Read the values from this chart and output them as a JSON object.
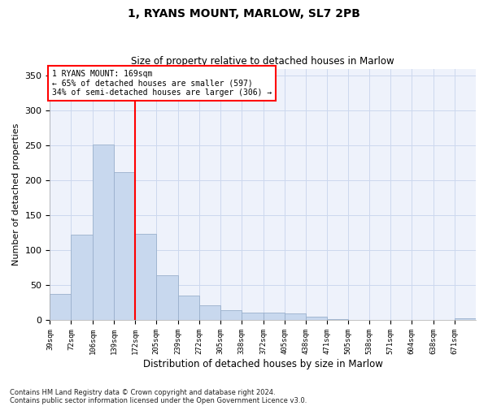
{
  "title1": "1, RYANS MOUNT, MARLOW, SL7 2PB",
  "title2": "Size of property relative to detached houses in Marlow",
  "xlabel": "Distribution of detached houses by size in Marlow",
  "ylabel": "Number of detached properties",
  "bar_color": "#c8d8ee",
  "bar_edgecolor": "#9ab0cc",
  "vline_x": 172,
  "vline_color": "red",
  "annotation_lines": [
    "1 RYANS MOUNT: 169sqm",
    "← 65% of detached houses are smaller (597)",
    "34% of semi-detached houses are larger (306) →"
  ],
  "annotation_box_color": "red",
  "bins": [
    39,
    72,
    106,
    139,
    172,
    205,
    239,
    272,
    305,
    338,
    372,
    405,
    438,
    471,
    505,
    538,
    571,
    604,
    638,
    671,
    704
  ],
  "bar_heights": [
    38,
    122,
    252,
    212,
    124,
    65,
    35,
    21,
    15,
    11,
    11,
    10,
    5,
    2,
    0,
    0,
    0,
    0,
    0,
    3
  ],
  "ylim": [
    0,
    360
  ],
  "yticks": [
    0,
    50,
    100,
    150,
    200,
    250,
    300,
    350
  ],
  "footnote1": "Contains HM Land Registry data © Crown copyright and database right 2024.",
  "footnote2": "Contains public sector information licensed under the Open Government Licence v3.0.",
  "bg_color": "#eef2fb",
  "grid_color": "#ccd8ee"
}
